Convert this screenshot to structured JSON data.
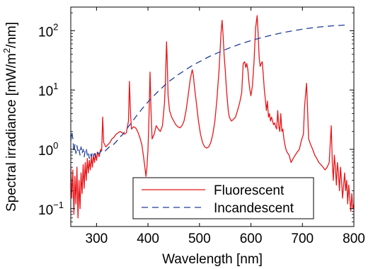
{
  "chart_data": {
    "type": "line",
    "title": "",
    "xlabel": "Wavelength [nm]",
    "ylabel_main": "Spectral irradiance [mW/m",
    "ylabel_sup1": "2",
    "ylabel_mid": "/nm]",
    "ylabel": "Spectral irradiance [mW/m2/nm]",
    "xlim": [
      250,
      800
    ],
    "ylim": [
      0.05,
      250
    ],
    "yscale": "log",
    "grid": false,
    "legend_position": "bottom-right",
    "x_ticks": [
      {
        "value": 300,
        "label": "300"
      },
      {
        "value": 400,
        "label": "400"
      },
      {
        "value": 500,
        "label": "500"
      },
      {
        "value": 600,
        "label": "600"
      },
      {
        "value": 700,
        "label": "700"
      },
      {
        "value": 800,
        "label": "800"
      }
    ],
    "y_ticks": [
      {
        "value": 0.1,
        "base": "10",
        "exp": "−1"
      },
      {
        "value": 1,
        "base": "10",
        "exp": "0"
      },
      {
        "value": 10,
        "base": "10",
        "exp": "1"
      },
      {
        "value": 100,
        "base": "10",
        "exp": "2"
      }
    ],
    "series": [
      {
        "name": "Fluorescent",
        "color": "#e8161a",
        "style": "solid",
        "points": [
          [
            250,
            0.5
          ],
          [
            252,
            0.15
          ],
          [
            254,
            0.45
          ],
          [
            256,
            0.08
          ],
          [
            258,
            0.35
          ],
          [
            260,
            0.12
          ],
          [
            262,
            0.5
          ],
          [
            264,
            0.07
          ],
          [
            266,
            0.3
          ],
          [
            268,
            0.1
          ],
          [
            270,
            0.4
          ],
          [
            272,
            0.18
          ],
          [
            274,
            0.55
          ],
          [
            276,
            0.22
          ],
          [
            278,
            0.6
          ],
          [
            280,
            0.3
          ],
          [
            282,
            0.7
          ],
          [
            284,
            0.4
          ],
          [
            286,
            0.65
          ],
          [
            288,
            0.45
          ],
          [
            290,
            0.75
          ],
          [
            292,
            0.5
          ],
          [
            294,
            0.8
          ],
          [
            296,
            0.6
          ],
          [
            298,
            0.85
          ],
          [
            300,
            0.65
          ],
          [
            302,
            0.9
          ],
          [
            305,
            0.75
          ],
          [
            308,
            1.0
          ],
          [
            310,
            0.95
          ],
          [
            312,
            3.5
          ],
          [
            314,
            1.3
          ],
          [
            318,
            1.1
          ],
          [
            322,
            1.2
          ],
          [
            326,
            1.3
          ],
          [
            330,
            1.5
          ],
          [
            334,
            1.6
          ],
          [
            338,
            1.8
          ],
          [
            342,
            1.9
          ],
          [
            346,
            2.0
          ],
          [
            350,
            1.9
          ],
          [
            354,
            1.8
          ],
          [
            358,
            1.9
          ],
          [
            362,
            3.0
          ],
          [
            364,
            14
          ],
          [
            366,
            4.0
          ],
          [
            368,
            2.2
          ],
          [
            372,
            2.4
          ],
          [
            376,
            2.3
          ],
          [
            380,
            2.0
          ],
          [
            384,
            1.6
          ],
          [
            388,
            1.2
          ],
          [
            391,
            0.8
          ],
          [
            394,
            0.5
          ],
          [
            396,
            0.35
          ],
          [
            398,
            0.5
          ],
          [
            400,
            1.0
          ],
          [
            402,
            3.5
          ],
          [
            404,
            20
          ],
          [
            406,
            4.0
          ],
          [
            408,
            1.5
          ],
          [
            412,
            1.8
          ],
          [
            416,
            2.5
          ],
          [
            420,
            2.2
          ],
          [
            424,
            2.0
          ],
          [
            428,
            2.5
          ],
          [
            432,
            6.0
          ],
          [
            434,
            15
          ],
          [
            436,
            65
          ],
          [
            437,
            40
          ],
          [
            439,
            8.0
          ],
          [
            442,
            4.5
          ],
          [
            446,
            3.5
          ],
          [
            450,
            3.0
          ],
          [
            454,
            2.6
          ],
          [
            458,
            2.4
          ],
          [
            462,
            2.3
          ],
          [
            466,
            2.5
          ],
          [
            470,
            3.0
          ],
          [
            474,
            4.5
          ],
          [
            478,
            8.0
          ],
          [
            482,
            15
          ],
          [
            486,
            22
          ],
          [
            488,
            18
          ],
          [
            490,
            12
          ],
          [
            494,
            6.0
          ],
          [
            498,
            3.0
          ],
          [
            502,
            1.8
          ],
          [
            506,
            1.3
          ],
          [
            510,
            1.1
          ],
          [
            514,
            1.05
          ],
          [
            518,
            1.1
          ],
          [
            522,
            1.3
          ],
          [
            526,
            1.8
          ],
          [
            530,
            3.0
          ],
          [
            534,
            7.0
          ],
          [
            538,
            22
          ],
          [
            542,
            95
          ],
          [
            544,
            150
          ],
          [
            546,
            80
          ],
          [
            548,
            38
          ],
          [
            550,
            22
          ],
          [
            552,
            12
          ],
          [
            554,
            7.0
          ],
          [
            556,
            4.5
          ],
          [
            558,
            3.5
          ],
          [
            562,
            3.0
          ],
          [
            566,
            3.2
          ],
          [
            570,
            3.5
          ],
          [
            574,
            4.5
          ],
          [
            578,
            6.0
          ],
          [
            582,
            9.0
          ],
          [
            585,
            28
          ],
          [
            588,
            30
          ],
          [
            590,
            24
          ],
          [
            592,
            28
          ],
          [
            594,
            22
          ],
          [
            596,
            14
          ],
          [
            598,
            10
          ],
          [
            600,
            8.0
          ],
          [
            603,
            12
          ],
          [
            606,
            30
          ],
          [
            609,
            110
          ],
          [
            612,
            180
          ],
          [
            614,
            90
          ],
          [
            616,
            35
          ],
          [
            618,
            25
          ],
          [
            620,
            28
          ],
          [
            622,
            30
          ],
          [
            624,
            18
          ],
          [
            626,
            10
          ],
          [
            628,
            7.0
          ],
          [
            630,
            4.5
          ],
          [
            632,
            6.5
          ],
          [
            634,
            3.5
          ],
          [
            636,
            4.0
          ],
          [
            638,
            3.0
          ],
          [
            640,
            3.5
          ],
          [
            642,
            3.0
          ],
          [
            644,
            2.6
          ],
          [
            646,
            2.8
          ],
          [
            648,
            2.4
          ],
          [
            650,
            2.2
          ],
          [
            652,
            4.5
          ],
          [
            654,
            2.5
          ],
          [
            656,
            2.0
          ],
          [
            658,
            4.0
          ],
          [
            660,
            2.0
          ],
          [
            662,
            2.2
          ],
          [
            664,
            1.5
          ],
          [
            666,
            1.2
          ],
          [
            668,
            1.0
          ],
          [
            670,
            0.9
          ],
          [
            674,
            0.8
          ],
          [
            678,
            0.6
          ],
          [
            682,
            0.7
          ],
          [
            686,
            0.8
          ],
          [
            690,
            0.9
          ],
          [
            694,
            1.0
          ],
          [
            698,
            1.4
          ],
          [
            702,
            1.8
          ],
          [
            704,
            5.0
          ],
          [
            706,
            8.0
          ],
          [
            708,
            13
          ],
          [
            710,
            5.0
          ],
          [
            712,
            1.5
          ],
          [
            716,
            1.2
          ],
          [
            720,
            1.0
          ],
          [
            724,
            0.8
          ],
          [
            728,
            0.7
          ],
          [
            732,
            0.6
          ],
          [
            736,
            0.55
          ],
          [
            740,
            0.5
          ],
          [
            744,
            0.45
          ],
          [
            748,
            0.5
          ],
          [
            752,
            0.6
          ],
          [
            754,
            1.2
          ],
          [
            756,
            2.5
          ],
          [
            758,
            0.6
          ],
          [
            760,
            0.3
          ],
          [
            762,
            0.8
          ],
          [
            764,
            0.5
          ],
          [
            766,
            0.25
          ],
          [
            768,
            0.6
          ],
          [
            770,
            0.4
          ],
          [
            772,
            0.2
          ],
          [
            774,
            0.5
          ],
          [
            776,
            0.3
          ],
          [
            778,
            0.15
          ],
          [
            780,
            0.25
          ],
          [
            782,
            0.4
          ],
          [
            784,
            0.2
          ],
          [
            786,
            0.3
          ],
          [
            788,
            0.12
          ],
          [
            790,
            0.25
          ],
          [
            792,
            0.15
          ],
          [
            794,
            0.09
          ],
          [
            796,
            0.18
          ],
          [
            798,
            0.1
          ],
          [
            800,
            0.12
          ]
        ]
      },
      {
        "name": "Incandescent",
        "color": "#1f3d99",
        "style": "dashed",
        "points": [
          [
            250,
            1.4
          ],
          [
            252,
            2.0
          ],
          [
            254,
            1.5
          ],
          [
            256,
            0.9
          ],
          [
            258,
            1.2
          ],
          [
            260,
            0.85
          ],
          [
            262,
            1.15
          ],
          [
            264,
            0.9
          ],
          [
            266,
            1.0
          ],
          [
            268,
            0.8
          ],
          [
            270,
            1.1
          ],
          [
            272,
            0.85
          ],
          [
            274,
            1.0
          ],
          [
            276,
            0.75
          ],
          [
            278,
            0.95
          ],
          [
            280,
            1.05
          ],
          [
            282,
            0.8
          ],
          [
            284,
            0.9
          ],
          [
            286,
            0.7
          ],
          [
            288,
            0.85
          ],
          [
            290,
            0.75
          ],
          [
            292,
            0.9
          ],
          [
            294,
            0.8
          ],
          [
            296,
            0.85
          ],
          [
            298,
            0.75
          ],
          [
            300,
            0.9
          ],
          [
            305,
            0.85
          ],
          [
            310,
            0.95
          ],
          [
            315,
            0.9
          ],
          [
            320,
            1.0
          ],
          [
            325,
            1.1
          ],
          [
            330,
            1.15
          ],
          [
            335,
            1.25
          ],
          [
            340,
            1.4
          ],
          [
            345,
            1.6
          ],
          [
            350,
            1.75
          ],
          [
            355,
            2.0
          ],
          [
            360,
            2.3
          ],
          [
            365,
            2.6
          ],
          [
            370,
            3.0
          ],
          [
            375,
            3.4
          ],
          [
            380,
            3.9
          ],
          [
            385,
            4.4
          ],
          [
            390,
            5.0
          ],
          [
            395,
            5.6
          ],
          [
            400,
            6.3
          ],
          [
            410,
            7.8
          ],
          [
            420,
            9.5
          ],
          [
            430,
            11.5
          ],
          [
            440,
            13.8
          ],
          [
            450,
            16
          ],
          [
            460,
            18.5
          ],
          [
            470,
            21
          ],
          [
            480,
            24
          ],
          [
            490,
            27
          ],
          [
            500,
            30
          ],
          [
            520,
            37
          ],
          [
            540,
            44
          ],
          [
            560,
            52
          ],
          [
            580,
            60
          ],
          [
            600,
            68
          ],
          [
            620,
            76
          ],
          [
            640,
            84
          ],
          [
            660,
            92
          ],
          [
            680,
            99
          ],
          [
            700,
            106
          ],
          [
            720,
            112
          ],
          [
            740,
            117
          ],
          [
            760,
            121
          ],
          [
            780,
            124
          ],
          [
            790,
            125
          ]
        ]
      }
    ]
  }
}
